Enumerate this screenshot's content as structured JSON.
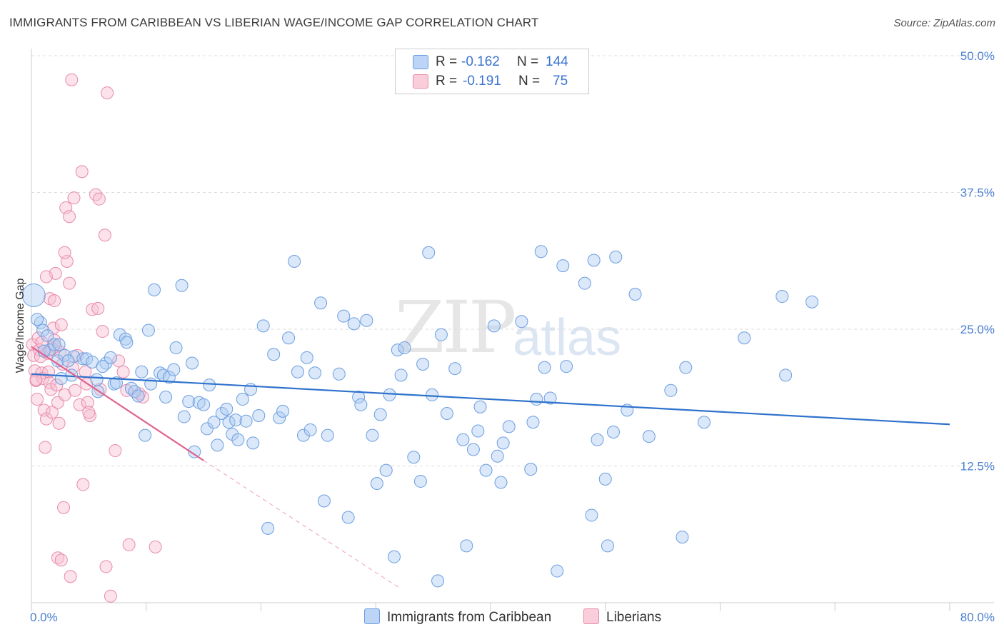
{
  "title": "IMMIGRANTS FROM CARIBBEAN VS LIBERIAN WAGE/INCOME GAP CORRELATION CHART",
  "source": "Source: ZipAtlas.com",
  "watermark": {
    "part1": "ZIP",
    "part2": "atlas"
  },
  "colors": {
    "blue_fill": "#aecbf2",
    "blue_stroke": "#6c9ee0",
    "blue_line": "#2f72cc",
    "pink_fill": "#f7bfd2",
    "pink_stroke": "#e88aaa",
    "pink_line": "#e0628e",
    "grid": "#dddddd",
    "tick_text": "#4a7fd0"
  },
  "legend": {
    "rows": [
      {
        "r_label": "R =",
        "r_value": "-0.162",
        "n_label": "N =",
        "n_value": "144"
      },
      {
        "r_label": "R =",
        "r_value": "-0.191",
        "n_label": "N =",
        "n_value": "75"
      }
    ]
  },
  "bottom_legend": [
    {
      "label": "Immigrants from Caribbean"
    },
    {
      "label": "Liberians"
    }
  ],
  "chart_data": {
    "type": "scatter",
    "title": "IMMIGRANTS FROM CARIBBEAN VS LIBERIAN WAGE/INCOME GAP CORRELATION CHART",
    "xlabel": "",
    "ylabel": "Wage/Income Gap",
    "xlim": [
      0,
      80
    ],
    "ylim": [
      0,
      50
    ],
    "x_tick_labels": [
      "0.0%",
      "80.0%"
    ],
    "y_ticks": [
      12.5,
      25.0,
      37.5,
      50.0
    ],
    "y_tick_labels": [
      "12.5%",
      "25.0%",
      "37.5%",
      "50.0%"
    ],
    "grid": true,
    "series": [
      {
        "name": "Immigrants from Caribbean",
        "trend": {
          "x": [
            0,
            80
          ],
          "y": [
            20.9,
            16.3
          ],
          "dashed_to": null
        },
        "points": [
          [
            0.2,
            28.1
          ],
          [
            0.8,
            25.6
          ],
          [
            1.0,
            24.9
          ],
          [
            1.4,
            24.4
          ],
          [
            1.6,
            23.1
          ],
          [
            2.0,
            23.6
          ],
          [
            2.3,
            22.1
          ],
          [
            2.9,
            22.6
          ],
          [
            3.7,
            22.5
          ],
          [
            4.5,
            22.3
          ],
          [
            2.6,
            20.5
          ],
          [
            3.2,
            22.1
          ],
          [
            4.8,
            22.3
          ],
          [
            5.3,
            22.0
          ],
          [
            5.7,
            20.4
          ],
          [
            5.8,
            19.3
          ],
          [
            6.5,
            21.9
          ],
          [
            6.9,
            22.4
          ],
          [
            7.2,
            20.0
          ],
          [
            7.4,
            20.1
          ],
          [
            7.7,
            24.5
          ],
          [
            8.2,
            24.1
          ],
          [
            8.3,
            23.8
          ],
          [
            8.7,
            19.6
          ],
          [
            9.0,
            19.3
          ],
          [
            9.3,
            18.9
          ],
          [
            9.6,
            21.1
          ],
          [
            9.9,
            15.3
          ],
          [
            10.2,
            24.9
          ],
          [
            10.4,
            20.0
          ],
          [
            10.7,
            28.6
          ],
          [
            11.2,
            21.0
          ],
          [
            11.5,
            20.8
          ],
          [
            11.7,
            18.8
          ],
          [
            12.0,
            20.6
          ],
          [
            12.4,
            21.3
          ],
          [
            12.6,
            23.3
          ],
          [
            13.1,
            29.0
          ],
          [
            13.3,
            17.0
          ],
          [
            13.7,
            18.4
          ],
          [
            14.0,
            21.9
          ],
          [
            14.2,
            13.8
          ],
          [
            14.6,
            18.3
          ],
          [
            15.0,
            18.1
          ],
          [
            15.3,
            15.9
          ],
          [
            15.5,
            19.9
          ],
          [
            15.9,
            16.5
          ],
          [
            16.2,
            14.4
          ],
          [
            16.6,
            17.3
          ],
          [
            17.0,
            17.7
          ],
          [
            17.2,
            16.5
          ],
          [
            17.5,
            15.4
          ],
          [
            17.8,
            16.7
          ],
          [
            18.0,
            14.9
          ],
          [
            18.4,
            18.6
          ],
          [
            18.7,
            16.6
          ],
          [
            19.1,
            19.5
          ],
          [
            19.3,
            14.6
          ],
          [
            19.8,
            17.1
          ],
          [
            20.2,
            25.3
          ],
          [
            20.6,
            6.8
          ],
          [
            21.1,
            22.7
          ],
          [
            21.6,
            16.9
          ],
          [
            21.9,
            17.5
          ],
          [
            22.4,
            24.2
          ],
          [
            22.9,
            31.2
          ],
          [
            23.2,
            21.1
          ],
          [
            23.7,
            15.3
          ],
          [
            24.0,
            22.4
          ],
          [
            24.3,
            15.8
          ],
          [
            24.7,
            21.0
          ],
          [
            25.2,
            27.4
          ],
          [
            25.5,
            9.3
          ],
          [
            25.8,
            15.3
          ],
          [
            26.8,
            20.9
          ],
          [
            27.2,
            26.2
          ],
          [
            27.6,
            7.8
          ],
          [
            28.1,
            25.5
          ],
          [
            28.5,
            18.8
          ],
          [
            28.7,
            18.1
          ],
          [
            29.2,
            25.8
          ],
          [
            29.7,
            15.3
          ],
          [
            30.1,
            10.9
          ],
          [
            30.4,
            17.2
          ],
          [
            30.9,
            12.1
          ],
          [
            31.2,
            19.0
          ],
          [
            31.6,
            4.2
          ],
          [
            31.9,
            23.1
          ],
          [
            32.2,
            20.8
          ],
          [
            32.5,
            23.3
          ],
          [
            33.3,
            13.3
          ],
          [
            33.9,
            11.1
          ],
          [
            34.1,
            21.8
          ],
          [
            34.6,
            32.0
          ],
          [
            34.9,
            19.0
          ],
          [
            35.4,
            2.0
          ],
          [
            35.7,
            24.5
          ],
          [
            36.2,
            17.3
          ],
          [
            36.9,
            21.4
          ],
          [
            37.6,
            14.9
          ],
          [
            37.9,
            5.2
          ],
          [
            38.5,
            14.0
          ],
          [
            38.9,
            15.7
          ],
          [
            39.1,
            17.9
          ],
          [
            39.6,
            12.1
          ],
          [
            40.3,
            25.3
          ],
          [
            40.6,
            13.4
          ],
          [
            40.9,
            11.0
          ],
          [
            41.1,
            14.6
          ],
          [
            41.6,
            16.1
          ],
          [
            42.7,
            25.7
          ],
          [
            43.5,
            12.2
          ],
          [
            43.7,
            16.5
          ],
          [
            44.0,
            18.6
          ],
          [
            44.4,
            32.1
          ],
          [
            44.7,
            21.5
          ],
          [
            45.2,
            18.7
          ],
          [
            45.8,
            2.9
          ],
          [
            46.3,
            30.8
          ],
          [
            46.6,
            21.6
          ],
          [
            48.2,
            29.2
          ],
          [
            48.8,
            8.0
          ],
          [
            49.0,
            31.3
          ],
          [
            49.3,
            14.9
          ],
          [
            50.0,
            11.3
          ],
          [
            50.2,
            5.2
          ],
          [
            50.7,
            15.6
          ],
          [
            50.9,
            31.6
          ],
          [
            51.9,
            17.6
          ],
          [
            52.6,
            28.2
          ],
          [
            53.8,
            15.2
          ],
          [
            55.7,
            19.4
          ],
          [
            56.7,
            6.0
          ],
          [
            57.0,
            21.5
          ],
          [
            58.6,
            16.5
          ],
          [
            62.1,
            24.2
          ],
          [
            65.4,
            28.0
          ],
          [
            65.7,
            20.8
          ],
          [
            68.0,
            27.5
          ],
          [
            0.5,
            25.9
          ],
          [
            1.1,
            23.0
          ],
          [
            2.4,
            23.6
          ],
          [
            3.5,
            20.8
          ],
          [
            6.2,
            21.6
          ]
        ]
      },
      {
        "name": "Liberians",
        "trend": {
          "x": [
            0,
            15
          ],
          "y": [
            23.4,
            13.0
          ],
          "dashed_to": [
            32,
            1.4
          ]
        },
        "points": [
          [
            0.1,
            23.6
          ],
          [
            0.2,
            22.6
          ],
          [
            0.3,
            21.2
          ],
          [
            0.4,
            20.3
          ],
          [
            0.5,
            18.6
          ],
          [
            0.6,
            24.2
          ],
          [
            0.7,
            23.1
          ],
          [
            0.8,
            22.5
          ],
          [
            0.9,
            21.0
          ],
          [
            1.0,
            20.5
          ],
          [
            1.1,
            17.6
          ],
          [
            1.2,
            14.2
          ],
          [
            1.3,
            16.8
          ],
          [
            1.4,
            22.8
          ],
          [
            1.5,
            21.1
          ],
          [
            1.6,
            20.1
          ],
          [
            1.7,
            19.5
          ],
          [
            1.8,
            17.4
          ],
          [
            1.9,
            25.1
          ],
          [
            2.0,
            24.0
          ],
          [
            2.1,
            23.4
          ],
          [
            2.2,
            19.9
          ],
          [
            2.3,
            18.3
          ],
          [
            2.4,
            16.4
          ],
          [
            2.5,
            22.9
          ],
          [
            2.6,
            25.4
          ],
          [
            2.7,
            21.8
          ],
          [
            2.8,
            8.7
          ],
          [
            2.9,
            19.0
          ],
          [
            3.0,
            36.1
          ],
          [
            3.1,
            31.2
          ],
          [
            3.3,
            29.2
          ],
          [
            3.5,
            47.8
          ],
          [
            3.6,
            21.5
          ],
          [
            3.8,
            19.4
          ],
          [
            4.0,
            22.6
          ],
          [
            4.2,
            18.1
          ],
          [
            4.4,
            39.4
          ],
          [
            4.5,
            10.8
          ],
          [
            4.7,
            21.1
          ],
          [
            4.9,
            18.3
          ],
          [
            5.1,
            17.1
          ],
          [
            5.3,
            26.8
          ],
          [
            5.6,
            37.3
          ],
          [
            5.9,
            36.9
          ],
          [
            6.0,
            19.5
          ],
          [
            6.2,
            24.8
          ],
          [
            6.4,
            33.6
          ],
          [
            6.5,
            3.3
          ],
          [
            6.6,
            46.6
          ],
          [
            7.3,
            13.9
          ],
          [
            7.6,
            22.1
          ],
          [
            8.0,
            21.1
          ],
          [
            8.3,
            19.4
          ],
          [
            8.5,
            5.3
          ],
          [
            9.4,
            19.1
          ],
          [
            9.7,
            18.8
          ],
          [
            10.8,
            5.1
          ],
          [
            1.6,
            27.8
          ],
          [
            2.1,
            30.1
          ],
          [
            2.3,
            4.1
          ],
          [
            2.6,
            3.9
          ],
          [
            3.4,
            2.4
          ],
          [
            3.7,
            37.0
          ],
          [
            4.8,
            20.0
          ],
          [
            0.4,
            20.4
          ],
          [
            0.9,
            23.8
          ],
          [
            1.8,
            23.2
          ],
          [
            2.9,
            32.0
          ],
          [
            5.8,
            26.9
          ],
          [
            6.9,
            0.6
          ],
          [
            1.3,
            29.8
          ],
          [
            2.0,
            27.6
          ],
          [
            3.3,
            35.3
          ],
          [
            5.0,
            17.4
          ]
        ]
      }
    ]
  }
}
